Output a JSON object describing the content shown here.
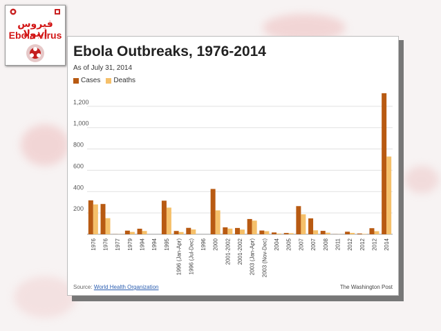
{
  "logo": {
    "arabic_text": "فيروس إيبولا",
    "english_text": "Ebola Virus"
  },
  "colors": {
    "cases": "#b85a12",
    "deaths": "#f5c06a",
    "background": "#f7f3f3",
    "brand_red": "#d21515"
  },
  "chart_data": {
    "type": "bar",
    "title": "Ebola Outbreaks, 1976-2014",
    "subtitle": "As of July 31, 2014",
    "categories": [
      "1976",
      "1976",
      "1977",
      "1979",
      "1994",
      "1994",
      "1995",
      "1996 (Jan-Apr)",
      "1996 (Jul-Dec)",
      "1996",
      "2000",
      "2001-2002",
      "2001-2002",
      "2003 (Jan-Apr)",
      "2003 (Nov-Dec)",
      "2004",
      "2005",
      "2007",
      "2007",
      "2008",
      "2011",
      "2012",
      "2012",
      "2012",
      "2014"
    ],
    "series": [
      {
        "name": "Cases",
        "values": [
          318,
          284,
          1,
          34,
          52,
          0,
          315,
          31,
          60,
          0,
          425,
          65,
          59,
          143,
          35,
          17,
          12,
          264,
          149,
          32,
          1,
          24,
          7,
          57,
          1323
        ]
      },
      {
        "name": "Deaths",
        "values": [
          280,
          151,
          1,
          22,
          31,
          0,
          250,
          21,
          45,
          0,
          224,
          53,
          44,
          128,
          29,
          7,
          10,
          187,
          37,
          15,
          1,
          13,
          4,
          29,
          729
        ]
      }
    ],
    "yticks": [
      200,
      400,
      600,
      800,
      1000,
      1200
    ],
    "ytick_labels": [
      "200",
      "400",
      "600",
      "800",
      "1,000",
      "1,200"
    ],
    "ylim": [
      0,
      1400
    ],
    "grid": true,
    "legend_position": "top-left",
    "source_label": "Source:",
    "source_link": "World Health Organization",
    "credit": "The Washington Post"
  }
}
